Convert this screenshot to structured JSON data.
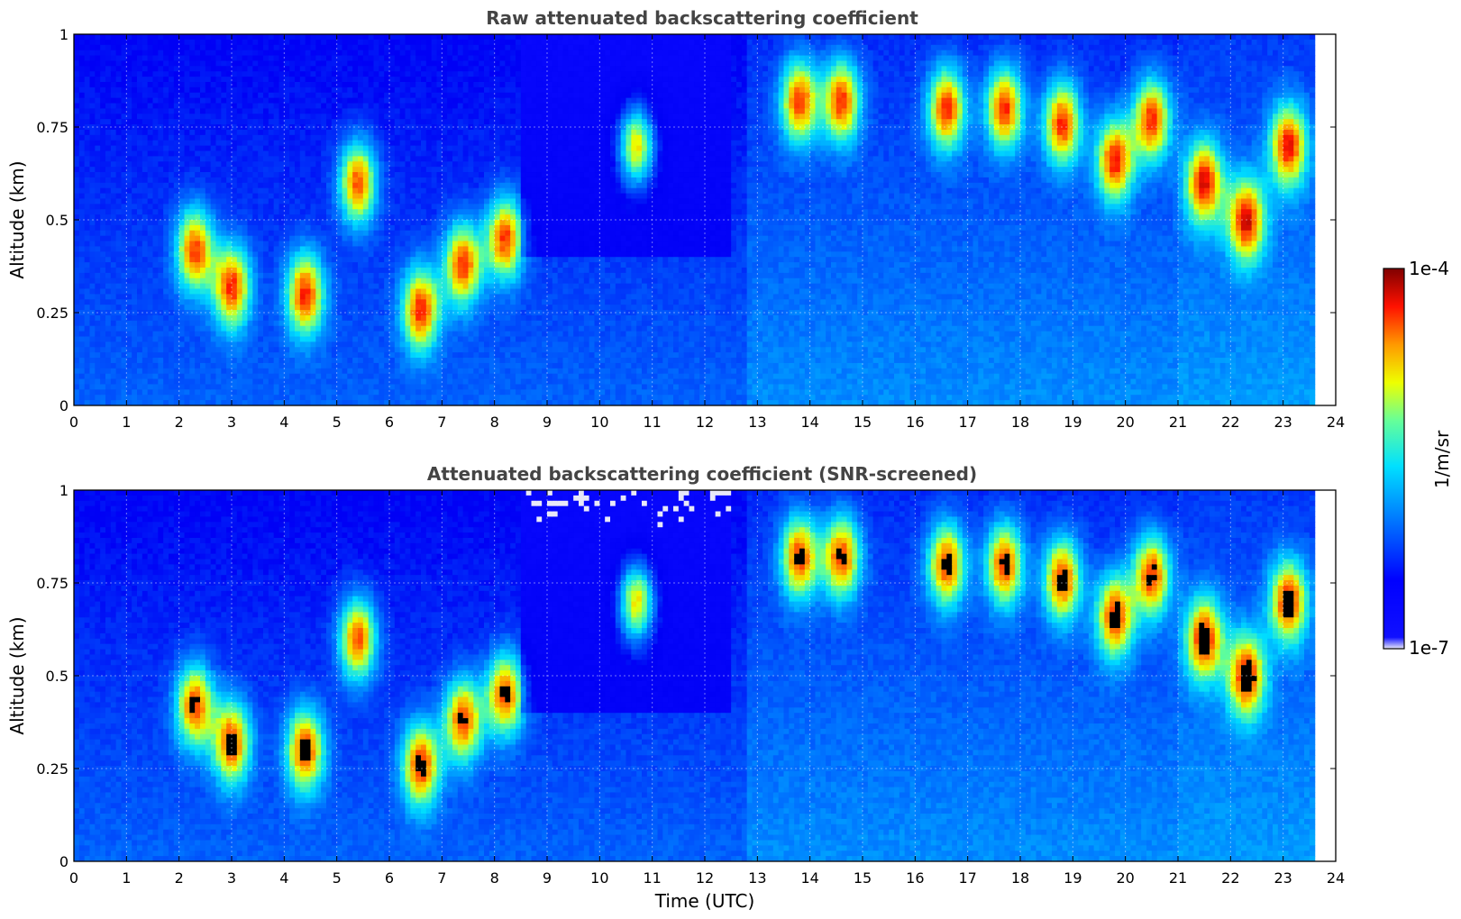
{
  "chart_data": [
    {
      "type": "heatmap",
      "title": "Raw attenuated backscattering coefficient",
      "xlabel": "",
      "ylabel": "Altitude (km)",
      "xlim": [
        0,
        24
      ],
      "ylim": [
        0,
        1
      ],
      "xticks": [
        "0",
        "1",
        "2",
        "3",
        "4",
        "5",
        "6",
        "7",
        "8",
        "9",
        "10",
        "11",
        "12",
        "13",
        "14",
        "15",
        "16",
        "17",
        "18",
        "19",
        "20",
        "21",
        "22",
        "23",
        "24"
      ],
      "yticks": [
        "0",
        "0.25",
        "0.5",
        "0.75",
        "1"
      ],
      "grid": true,
      "data_end_time": 23.65,
      "cloud_events": [
        {
          "t": 2.3,
          "alt": 0.42
        },
        {
          "t": 3.0,
          "alt": 0.32
        },
        {
          "t": 4.4,
          "alt": 0.3
        },
        {
          "t": 5.4,
          "alt": 0.6
        },
        {
          "t": 6.6,
          "alt": 0.26
        },
        {
          "t": 7.4,
          "alt": 0.38
        },
        {
          "t": 8.2,
          "alt": 0.45
        },
        {
          "t": 10.7,
          "alt": 0.7
        },
        {
          "t": 13.8,
          "alt": 0.82
        },
        {
          "t": 14.6,
          "alt": 0.82
        },
        {
          "t": 16.6,
          "alt": 0.8
        },
        {
          "t": 17.7,
          "alt": 0.8
        },
        {
          "t": 18.8,
          "alt": 0.76
        },
        {
          "t": 19.8,
          "alt": 0.66
        },
        {
          "t": 20.5,
          "alt": 0.77
        },
        {
          "t": 21.5,
          "alt": 0.6
        },
        {
          "t": 22.3,
          "alt": 0.5
        },
        {
          "t": 23.1,
          "alt": 0.7
        }
      ]
    },
    {
      "type": "heatmap",
      "title": "Attenuated backscattering coefficient (SNR-screened)",
      "xlabel": "Time (UTC)",
      "ylabel": "Altitude (km)",
      "xlim": [
        0,
        24
      ],
      "ylim": [
        0,
        1
      ],
      "xticks": [
        "0",
        "1",
        "2",
        "3",
        "4",
        "5",
        "6",
        "7",
        "8",
        "9",
        "10",
        "11",
        "12",
        "13",
        "14",
        "15",
        "16",
        "17",
        "18",
        "19",
        "20",
        "21",
        "22",
        "23",
        "24"
      ],
      "yticks": [
        "0",
        "0.25",
        "0.5",
        "0.75",
        "1"
      ],
      "grid": true,
      "data_end_time": 23.65,
      "saturated_color": "#000000"
    }
  ],
  "colorbar": {
    "label": "1/m/sr",
    "max_label": "1e-4",
    "min_label": "1e-7",
    "colormap": "jet",
    "colors": {
      "min": "#e8e8f8",
      "low": "#0000ff",
      "mid_low": "#00c8ff",
      "mid": "#66ff99",
      "mid_high": "#ffee00",
      "high": "#ff2200",
      "max": "#800000"
    }
  }
}
